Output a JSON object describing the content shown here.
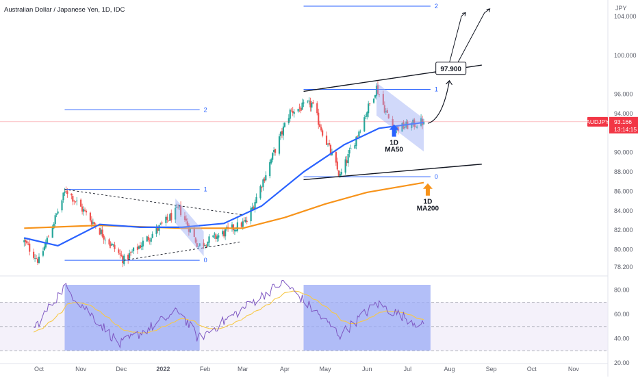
{
  "header": {
    "title": "Australian Dollar / Japanese Yen, 1D, IDC"
  },
  "price_scale": {
    "unit": "JPY",
    "current_symbol": "AUDJPY",
    "current_price": "93.166",
    "countdown": "13:14:15",
    "tag_color": "#f23645"
  },
  "colors": {
    "up_candle": "#26a69a",
    "down_candle": "#ef5350",
    "ma50": "#2962ff",
    "ma200": "#f7931a",
    "fib": "#2962ff",
    "rsi_line": "#7e57c2",
    "rsi_signal": "#f7c948",
    "rsi_box": "#9aaaf5",
    "rsi_band": "#ede7f6",
    "last_price_line": "#f23645"
  },
  "annotations": {
    "target_label": "97.900",
    "ma50_label_1": "1D",
    "ma50_label_2": "MA50",
    "ma200_label_1": "1D",
    "ma200_label_2": "MA200"
  },
  "chart_data": {
    "type": "candlestick",
    "title": "Australian Dollar / Japanese Yen, 1D, IDC",
    "x_axis_labels": [
      "Oct",
      "Nov",
      "Dec",
      "2022",
      "Feb",
      "Mar",
      "Apr",
      "May",
      "Jun",
      "Jul",
      "Aug",
      "Sep",
      "Oct",
      "Nov"
    ],
    "price_axis": {
      "unit": "JPY",
      "ticks": [
        "104.000",
        "100.000",
        "96.000",
        "94.000",
        "90.000",
        "88.000",
        "86.000",
        "84.000",
        "82.000",
        "80.000",
        "78.200"
      ],
      "range": [
        77.5,
        105
      ]
    },
    "rsi_axis": {
      "ticks": [
        "80.00",
        "60.00",
        "40.00",
        "20.00"
      ],
      "range": [
        20,
        90
      ],
      "band": [
        30,
        70
      ],
      "midline": 50
    },
    "last_price": 93.166,
    "series": [
      {
        "name": "AUDJPY price",
        "type": "candlestick",
        "key_points": [
          {
            "date": "2021-09-20",
            "close": 80.8
          },
          {
            "date": "2021-10-01",
            "close": 78.8
          },
          {
            "date": "2021-10-21",
            "close": 86.2
          },
          {
            "date": "2021-12-03",
            "close": 78.9
          },
          {
            "date": "2022-01-13",
            "close": 84.2
          },
          {
            "date": "2022-01-27",
            "close": 80.4
          },
          {
            "date": "2022-03-04",
            "close": 82.9
          },
          {
            "date": "2022-04-05",
            "close": 94.2
          },
          {
            "date": "2022-04-21",
            "close": 95.0
          },
          {
            "date": "2022-05-12",
            "close": 87.5
          },
          {
            "date": "2022-06-08",
            "close": 96.7
          },
          {
            "date": "2022-06-20",
            "close": 92.4
          },
          {
            "date": "2022-07-13",
            "close": 93.166
          }
        ]
      },
      {
        "name": "1D MA50",
        "type": "line",
        "points": [
          {
            "date": "2021-09-20",
            "value": 81.2
          },
          {
            "date": "2021-10-15",
            "value": 80.4
          },
          {
            "date": "2021-11-15",
            "value": 82.6
          },
          {
            "date": "2021-12-15",
            "value": 82.3
          },
          {
            "date": "2022-01-15",
            "value": 82.3
          },
          {
            "date": "2022-02-15",
            "value": 82.7
          },
          {
            "date": "2022-03-15",
            "value": 84.5
          },
          {
            "date": "2022-04-15",
            "value": 88.0
          },
          {
            "date": "2022-05-15",
            "value": 90.8
          },
          {
            "date": "2022-06-10",
            "value": 92.5
          },
          {
            "date": "2022-07-13",
            "value": 93.1
          }
        ]
      },
      {
        "name": "1D MA200",
        "type": "line",
        "points": [
          {
            "date": "2021-09-20",
            "value": 82.2
          },
          {
            "date": "2021-11-15",
            "value": 82.5
          },
          {
            "date": "2022-01-15",
            "value": 82.2
          },
          {
            "date": "2022-03-01",
            "value": 82.2
          },
          {
            "date": "2022-04-01",
            "value": 83.3
          },
          {
            "date": "2022-05-01",
            "value": 84.7
          },
          {
            "date": "2022-06-01",
            "value": 85.9
          },
          {
            "date": "2022-07-13",
            "value": 86.9
          }
        ]
      },
      {
        "name": "RSI",
        "type": "line",
        "panel": "rsi",
        "key_points": [
          {
            "date": "2021-09-25",
            "value": 45
          },
          {
            "date": "2021-10-20",
            "value": 83
          },
          {
            "date": "2021-11-30",
            "value": 35
          },
          {
            "date": "2022-01-13",
            "value": 63
          },
          {
            "date": "2022-01-27",
            "value": 40
          },
          {
            "date": "2022-03-31",
            "value": 87
          },
          {
            "date": "2022-05-12",
            "value": 43
          },
          {
            "date": "2022-06-08",
            "value": 69
          },
          {
            "date": "2022-07-13",
            "value": 50
          }
        ]
      }
    ],
    "fibonacci": [
      {
        "label": "2",
        "value": 94.4,
        "start": "2021-10-20",
        "end": "2022-01-28"
      },
      {
        "label": "1",
        "value": 86.2,
        "start": "2021-10-20",
        "end": "2022-01-28"
      },
      {
        "label": "0",
        "value": 78.9,
        "start": "2021-10-20",
        "end": "2022-01-28"
      },
      {
        "label": "2",
        "value": 105.5,
        "start": "2022-04-15",
        "end": "2022-07-18"
      },
      {
        "label": "1",
        "value": 96.5,
        "start": "2022-04-15",
        "end": "2022-07-18"
      },
      {
        "label": "0",
        "value": 87.5,
        "start": "2022-04-15",
        "end": "2022-07-18"
      }
    ],
    "channel": {
      "upper": [
        {
          "date": "2022-04-15",
          "value": 96.3
        },
        {
          "date": "2022-08-25",
          "value": 99.0
        }
      ],
      "lower": [
        {
          "date": "2022-04-15",
          "value": 87.2
        },
        {
          "date": "2022-08-25",
          "value": 88.8
        }
      ]
    },
    "triangle": {
      "upper": [
        {
          "date": "2021-10-20",
          "value": 86.2
        },
        {
          "date": "2022-02-28",
          "value": 83.6
        }
      ],
      "lower": [
        {
          "date": "2021-12-03",
          "value": 78.9
        },
        {
          "date": "2022-02-28",
          "value": 80.8
        }
      ]
    }
  }
}
